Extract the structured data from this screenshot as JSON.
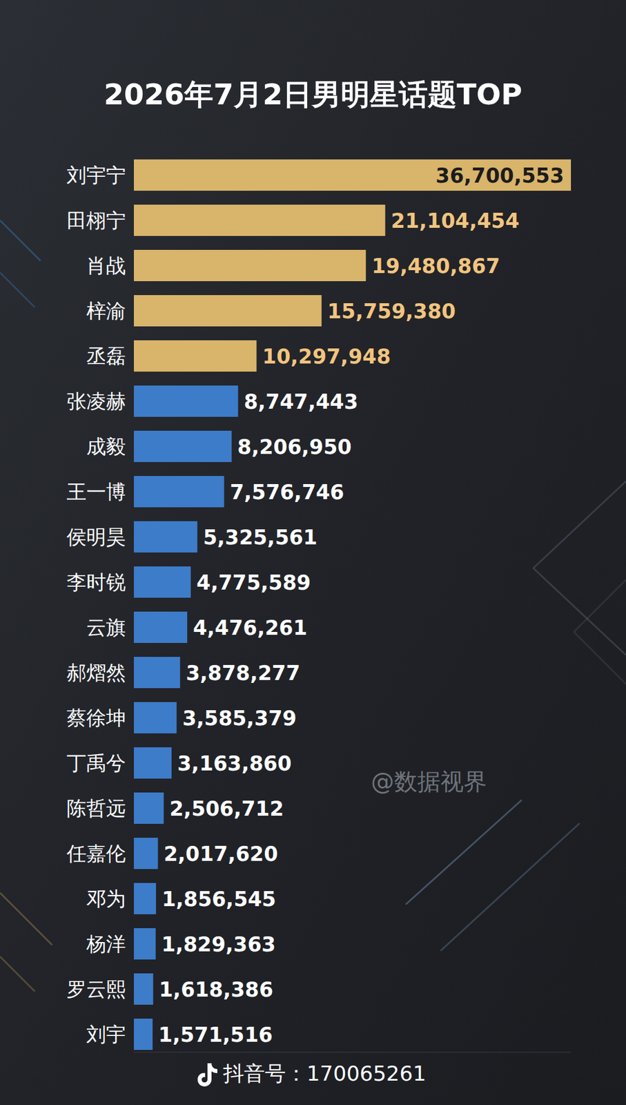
{
  "chart_data": {
    "type": "bar",
    "orientation": "horizontal",
    "title": "2026年7月2日男明星话题TOP",
    "categories": [
      "刘宇宁",
      "田栩宁",
      "肖战",
      "梓渝",
      "丞磊",
      "张凌赫",
      "成毅",
      "王一博",
      "侯明昊",
      "李时锐",
      "云旗",
      "郝熠然",
      "蔡徐坤",
      "丁禹兮",
      "陈哲远",
      "任嘉伦",
      "邓为",
      "杨洋",
      "罗云熙",
      "刘宇"
    ],
    "values": [
      36700553,
      21104454,
      19480867,
      15759380,
      10297948,
      8747443,
      8206950,
      7576746,
      5325561,
      4775589,
      4476261,
      3878277,
      3585379,
      3163860,
      2506712,
      2017620,
      1856545,
      1829363,
      1618386,
      1571516
    ],
    "value_labels": [
      "36,700,553",
      "21,104,454",
      "19,480,867",
      "15,759,380",
      "10,297,948",
      "8,747,443",
      "8,206,950",
      "7,576,746",
      "5,325,561",
      "4,775,589",
      "4,476,261",
      "3,878,277",
      "3,585,379",
      "3,163,860",
      "2,506,712",
      "2,017,620",
      "1,856,545",
      "1,829,363",
      "1,618,386",
      "1,571,516"
    ],
    "colors": [
      "#d9b46b",
      "#d9b46b",
      "#d9b46b",
      "#d9b46b",
      "#d9b46b",
      "#3d7cc9",
      "#3d7cc9",
      "#3d7cc9",
      "#3d7cc9",
      "#3d7cc9",
      "#3d7cc9",
      "#3d7cc9",
      "#3d7cc9",
      "#3d7cc9",
      "#3d7cc9",
      "#3d7cc9",
      "#3d7cc9",
      "#3d7cc9",
      "#3d7cc9",
      "#3d7cc9"
    ],
    "xlim": [
      0,
      36700553
    ],
    "data_labels": true,
    "tick_labels": false,
    "grid": false,
    "annotations": [
      "@数据视界",
      "抖音号：170065261"
    ]
  }
}
